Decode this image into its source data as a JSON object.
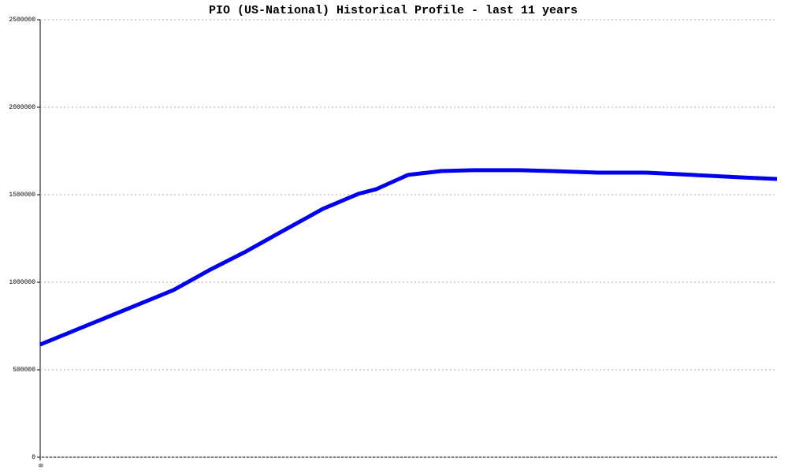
{
  "chart_data": {
    "type": "line",
    "title": "PIO (US-National) Historical Profile - last 11 years",
    "x": [
      0,
      1.99,
      2.52,
      3.05,
      3.58,
      4.22,
      4.75,
      5.02,
      5.49,
      5.99,
      6.46,
      7.16,
      7.64,
      8.34,
      9.05,
      9.75,
      10.46,
      11
    ],
    "series": [
      {
        "color": "#0000ee",
        "values": [
          644000,
          955000,
          1068000,
          1171000,
          1284000,
          1419000,
          1505000,
          1532000,
          1613000,
          1635000,
          1640000,
          1640000,
          1635000,
          1626000,
          1626000,
          1613000,
          1599000,
          1590000
        ]
      }
    ],
    "xlim": [
      0,
      11
    ],
    "xticks": [
      0
    ],
    "ylim": [
      0,
      2500000
    ],
    "yticks": [
      0,
      500000,
      1000000,
      1500000,
      2000000,
      2500000
    ],
    "grid": true
  }
}
